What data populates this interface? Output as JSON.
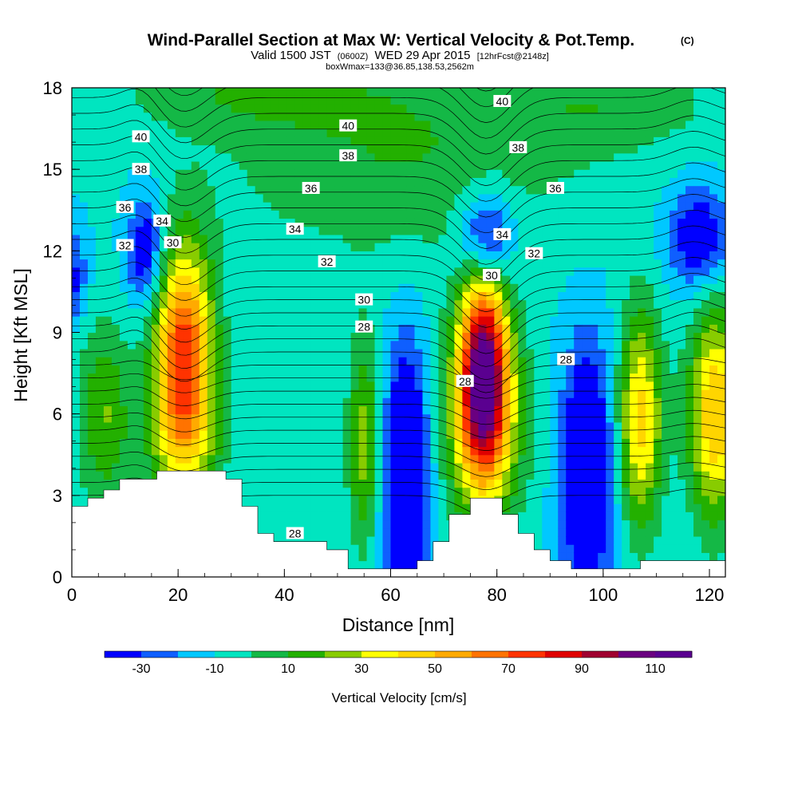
{
  "chart_data": {
    "type": "heatmap",
    "title": "Wind-Parallel Section at Max W: Vertical Velocity & Pot.Temp.",
    "title_suffix": "(C)",
    "subtitle_parts": [
      "Valid 1500 JST",
      "(0600Z)",
      "WED 29 Apr 2015",
      "[12hrFcst@2148z]"
    ],
    "subtitle2": "boxWmax=133@36.85,138.53,2562m",
    "xlabel": "Distance [nm]",
    "ylabel": "Height [Kft MSL]",
    "xlim": [
      0,
      123
    ],
    "ylim": [
      0,
      18
    ],
    "x_ticks": [
      "0",
      "20",
      "40",
      "60",
      "80",
      "100",
      "120"
    ],
    "y_ticks": [
      "0",
      "3",
      "6",
      "9",
      "12",
      "15",
      "18"
    ],
    "colorbar": {
      "label": "Vertical Velocity [cm/s]",
      "levels": [
        -40,
        -30,
        -20,
        -10,
        0,
        10,
        20,
        30,
        40,
        50,
        60,
        70,
        80,
        90,
        100,
        110,
        120
      ],
      "tick_labels": [
        "-30",
        "-10",
        "10",
        "30",
        "50",
        "70",
        "90",
        "110"
      ],
      "colors": [
        "#0000ff",
        "#0f5fff",
        "#00c8ff",
        "#00e5c0",
        "#14b846",
        "#23b000",
        "#88cc00",
        "#ffff00",
        "#ffd500",
        "#ffaa00",
        "#ff7300",
        "#ff3300",
        "#e00000",
        "#a00030",
        "#6a0080",
        "#5a0090"
      ]
    },
    "background_value": -10,
    "vertical_velocity_cells": [
      {
        "x": 21,
        "y": 8.3,
        "w": 85,
        "sx": 4.0,
        "sy": 2.8
      },
      {
        "x": 21,
        "y": 5.0,
        "w": 25,
        "sx": 5.5,
        "sy": 1.5
      },
      {
        "x": 77.5,
        "y": 7.5,
        "w": 113,
        "sx": 3.2,
        "sy": 2.6
      },
      {
        "x": 77.5,
        "y": 5.5,
        "w": 35,
        "sx": 6.0,
        "sy": 2.8
      },
      {
        "x": 55,
        "y": 5.0,
        "w": 35,
        "sx": 2.2,
        "sy": 2.8
      },
      {
        "x": 107,
        "y": 5.8,
        "w": 55,
        "sx": 3.0,
        "sy": 2.8
      },
      {
        "x": 121,
        "y": 6.0,
        "w": 60,
        "sx": 3.5,
        "sy": 2.8
      },
      {
        "x": 6,
        "y": 6.0,
        "w": 30,
        "sx": 3.5,
        "sy": 2.5
      },
      {
        "x": 63,
        "y": 3.5,
        "w": -50,
        "sx": 3.0,
        "sy": 3.5
      },
      {
        "x": 97,
        "y": 4.0,
        "w": -45,
        "sx": 3.5,
        "sy": 3.2
      },
      {
        "x": 78,
        "y": 12.5,
        "w": -45,
        "sx": 3.5,
        "sy": 1.3
      },
      {
        "x": 14,
        "y": 12.0,
        "w": -35,
        "sx": 2.5,
        "sy": 1.5
      },
      {
        "x": 118,
        "y": 12.5,
        "w": -35,
        "sx": 4.0,
        "sy": 1.3
      },
      {
        "x": 0,
        "y": 11.0,
        "w": -25,
        "sx": 2.0,
        "sy": 1.2
      },
      {
        "x": 62,
        "y": 15.5,
        "w": 20,
        "sx": 25.0,
        "sy": 2.8
      },
      {
        "x": 32,
        "y": 17.8,
        "w": 15,
        "sx": 18.0,
        "sy": 1.0
      },
      {
        "x": 102,
        "y": 17.5,
        "w": 15,
        "sx": 15.0,
        "sy": 1.3
      }
    ],
    "terrain_kft": [
      [
        0,
        2.6
      ],
      [
        3,
        2.6
      ],
      [
        3,
        2.9
      ],
      [
        6,
        2.9
      ],
      [
        6,
        3.2
      ],
      [
        9,
        3.2
      ],
      [
        9,
        3.6
      ],
      [
        16,
        3.6
      ],
      [
        16,
        3.9
      ],
      [
        29,
        3.9
      ],
      [
        29,
        3.6
      ],
      [
        32,
        3.6
      ],
      [
        32,
        2.6
      ],
      [
        35,
        2.6
      ],
      [
        35,
        1.6
      ],
      [
        38,
        1.6
      ],
      [
        38,
        1.3
      ],
      [
        48,
        1.3
      ],
      [
        48,
        1.0
      ],
      [
        52,
        1.0
      ],
      [
        52,
        0.3
      ],
      [
        65,
        0.3
      ],
      [
        65,
        0.6
      ],
      [
        68,
        0.6
      ],
      [
        68,
        1.3
      ],
      [
        71,
        1.3
      ],
      [
        71,
        2.3
      ],
      [
        75,
        2.3
      ],
      [
        75,
        2.9
      ],
      [
        81,
        2.9
      ],
      [
        81,
        2.3
      ],
      [
        84,
        2.3
      ],
      [
        84,
        1.6
      ],
      [
        87,
        1.6
      ],
      [
        87,
        1.0
      ],
      [
        90,
        1.0
      ],
      [
        90,
        0.6
      ],
      [
        94,
        0.6
      ],
      [
        94,
        0.3
      ],
      [
        107,
        0.3
      ],
      [
        107,
        0.6
      ],
      [
        123,
        0.6
      ]
    ],
    "theta_contour_labels": [
      {
        "text": "40",
        "x": 81,
        "y": 17.5
      },
      {
        "text": "40",
        "x": 52,
        "y": 16.6
      },
      {
        "text": "40",
        "x": 13,
        "y": 16.2
      },
      {
        "text": "38",
        "x": 13,
        "y": 15.0
      },
      {
        "text": "38",
        "x": 52,
        "y": 15.5
      },
      {
        "text": "38",
        "x": 84,
        "y": 15.8
      },
      {
        "text": "36",
        "x": 45,
        "y": 14.3
      },
      {
        "text": "36",
        "x": 91,
        "y": 14.3
      },
      {
        "text": "36",
        "x": 10,
        "y": 13.6
      },
      {
        "text": "34",
        "x": 17,
        "y": 13.1
      },
      {
        "text": "34",
        "x": 42,
        "y": 12.8
      },
      {
        "text": "34",
        "x": 81,
        "y": 12.6
      },
      {
        "text": "32",
        "x": 10,
        "y": 12.2
      },
      {
        "text": "32",
        "x": 48,
        "y": 11.6
      },
      {
        "text": "32",
        "x": 87,
        "y": 11.9
      },
      {
        "text": "30",
        "x": 19,
        "y": 12.3
      },
      {
        "text": "30",
        "x": 55,
        "y": 10.2
      },
      {
        "text": "30",
        "x": 79,
        "y": 11.1
      },
      {
        "text": "28",
        "x": 55,
        "y": 9.2
      },
      {
        "text": "28",
        "x": 74,
        "y": 7.2
      },
      {
        "text": "28",
        "x": 93,
        "y": 8.0
      },
      {
        "text": "28",
        "x": 42,
        "y": 1.6
      }
    ]
  }
}
